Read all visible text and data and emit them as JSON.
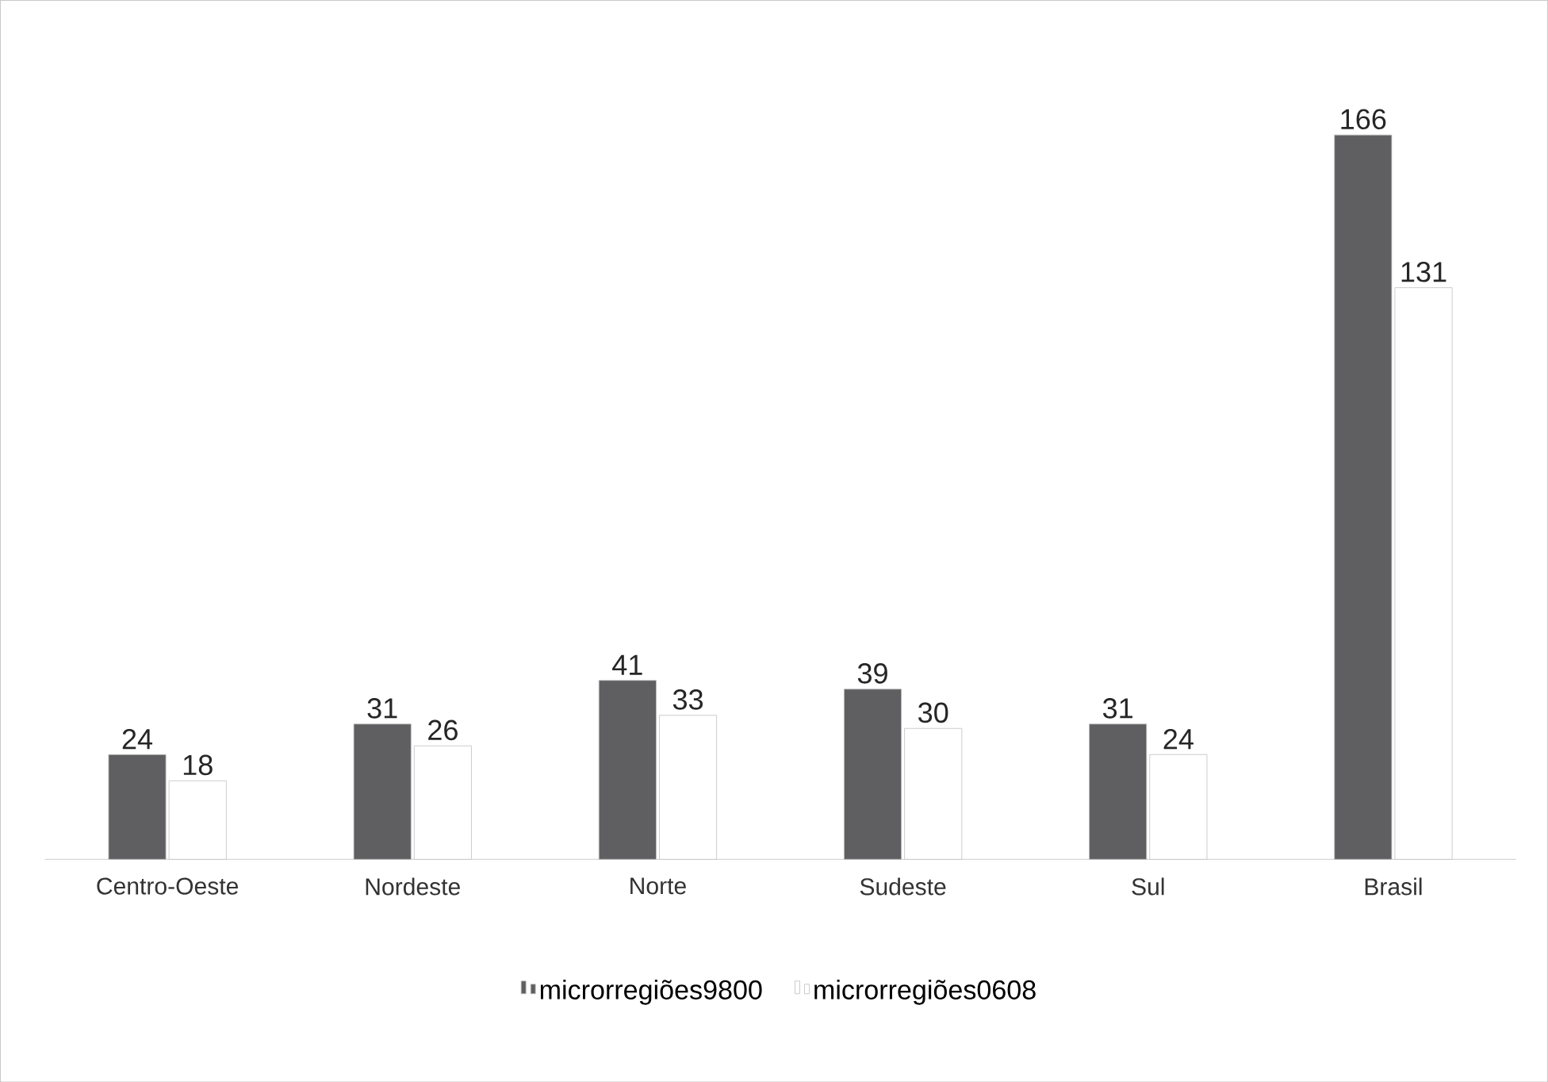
{
  "chart_data": {
    "type": "bar",
    "categories": [
      "Centro-Oeste",
      "Nordeste",
      "Norte",
      "Sudeste",
      "Sul",
      "Brasil"
    ],
    "series": [
      {
        "name": "microrregiões9800",
        "color": "#5f5f61",
        "values": [
          24,
          31,
          41,
          39,
          31,
          166
        ]
      },
      {
        "name": "microrregiões0608",
        "color": "#ffffff",
        "values": [
          18,
          26,
          33,
          30,
          24,
          131
        ]
      }
    ],
    "data_labels": true,
    "legend": "bottom",
    "grid": false
  }
}
